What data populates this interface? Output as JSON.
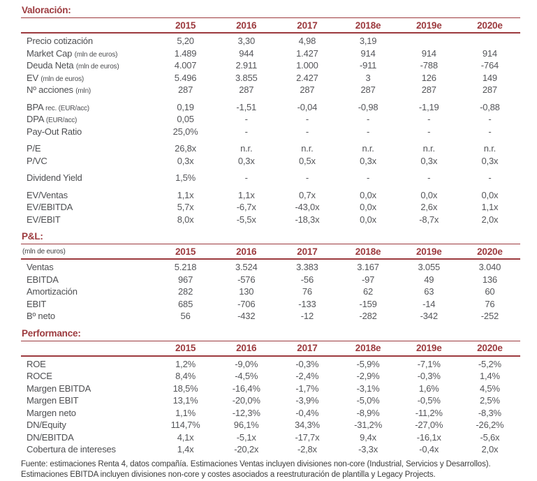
{
  "accent_color": "#9c3a3e",
  "years": [
    "2015",
    "2016",
    "2017",
    "2018e",
    "2019e",
    "2020e"
  ],
  "sections": [
    {
      "id": "valoracion",
      "title": "Valoración:",
      "header_label": "",
      "groups": [
        {
          "rows": [
            {
              "label": "Precio cotización",
              "values": [
                "5,20",
                "3,30",
                "4,98",
                "3,19",
                "",
                ""
              ]
            },
            {
              "label": "Market Cap",
              "label_small": "(mln de euros)",
              "values": [
                "1.489",
                "944",
                "1.427",
                "914",
                "914",
                "914"
              ]
            },
            {
              "label": "Deuda Neta",
              "label_small": "(mln de euros)",
              "values": [
                "4.007",
                "2.911",
                "1.000",
                "-911",
                "-788",
                "-764"
              ]
            },
            {
              "label": "EV",
              "label_small": "(mln de euros)",
              "values": [
                "5.496",
                "3.855",
                "2.427",
                "3",
                "126",
                "149"
              ]
            },
            {
              "label": "Nº acciones",
              "label_small": "(mln)",
              "values": [
                "287",
                "287",
                "287",
                "287",
                "287",
                "287"
              ]
            }
          ]
        },
        {
          "rows": [
            {
              "label": "BPA",
              "label_small": "rec. (EUR/acc)",
              "values": [
                "0,19",
                "-1,51",
                "-0,04",
                "-0,98",
                "-1,19",
                "-0,88"
              ]
            },
            {
              "label": "DPA",
              "label_small": "(EUR/acc)",
              "values": [
                "0,05",
                "-",
                "-",
                "-",
                "-",
                "-"
              ]
            },
            {
              "label": "Pay-Out Ratio",
              "values": [
                "25,0%",
                "-",
                "-",
                "-",
                "-",
                "-"
              ]
            }
          ]
        },
        {
          "rows": [
            {
              "label": "P/E",
              "values": [
                "26,8x",
                "n.r.",
                "n.r.",
                "n.r.",
                "n.r.",
                "n.r."
              ]
            },
            {
              "label": "P/VC",
              "values": [
                "0,3x",
                "0,3x",
                "0,5x",
                "0,3x",
                "0,3x",
                "0,3x"
              ]
            }
          ]
        },
        {
          "rows": [
            {
              "label": "Dividend Yield",
              "values": [
                "1,5%",
                "-",
                "-",
                "-",
                "-",
                "-"
              ]
            }
          ]
        },
        {
          "rows": [
            {
              "label": "EV/Ventas",
              "values": [
                "1,1x",
                "1,1x",
                "0,7x",
                "0,0x",
                "0,0x",
                "0,0x"
              ]
            },
            {
              "label": "EV/EBITDA",
              "values": [
                "5,7x",
                "-6,7x",
                "-43,0x",
                "0,0x",
                "2,6x",
                "1,1x"
              ]
            },
            {
              "label": "EV/EBIT",
              "values": [
                "8,0x",
                "-5,5x",
                "-18,3x",
                "0,0x",
                "-8,7x",
                "2,0x"
              ]
            }
          ]
        }
      ]
    },
    {
      "id": "pl",
      "title": "P&L:",
      "header_label": "(mln de euros)",
      "groups": [
        {
          "rows": [
            {
              "label": "Ventas",
              "values": [
                "5.218",
                "3.524",
                "3.383",
                "3.167",
                "3.055",
                "3.040"
              ]
            },
            {
              "label": "EBITDA",
              "values": [
                "967",
                "-576",
                "-56",
                "-97",
                "49",
                "136"
              ]
            },
            {
              "label": "Amortización",
              "values": [
                "282",
                "130",
                "76",
                "62",
                "63",
                "60"
              ]
            },
            {
              "label": "EBIT",
              "values": [
                "685",
                "-706",
                "-133",
                "-159",
                "-14",
                "76"
              ]
            },
            {
              "label": "Bº neto",
              "values": [
                "56",
                "-432",
                "-12",
                "-282",
                "-342",
                "-252"
              ]
            }
          ]
        }
      ]
    },
    {
      "id": "performance",
      "title": "Performance:",
      "header_label": "",
      "groups": [
        {
          "rows": [
            {
              "label": "ROE",
              "values": [
                "1,2%",
                "-9,0%",
                "-0,3%",
                "-5,9%",
                "-7,1%",
                "-5,2%"
              ]
            },
            {
              "label": "ROCE",
              "values": [
                "8,4%",
                "-4,5%",
                "-2,4%",
                "-2,9%",
                "-0,3%",
                "1,4%"
              ]
            },
            {
              "label": "Margen EBITDA",
              "values": [
                "18,5%",
                "-16,4%",
                "-1,7%",
                "-3,1%",
                "1,6%",
                "4,5%"
              ]
            },
            {
              "label": "Margen EBIT",
              "values": [
                "13,1%",
                "-20,0%",
                "-3,9%",
                "-5,0%",
                "-0,5%",
                "2,5%"
              ]
            },
            {
              "label": "Margen neto",
              "values": [
                "1,1%",
                "-12,3%",
                "-0,4%",
                "-8,9%",
                "-11,2%",
                "-8,3%"
              ]
            },
            {
              "label": "DN/Equity",
              "values": [
                "114,7%",
                "96,1%",
                "34,3%",
                "-31,2%",
                "-27,0%",
                "-26,2%"
              ]
            },
            {
              "label": "DN/EBITDA",
              "values": [
                "4,1x",
                "-5,1x",
                "-17,7x",
                "9,4x",
                "-16,1x",
                "-5,6x"
              ]
            },
            {
              "label": "Cobertura de intereses",
              "values": [
                "1,4x",
                "-20,2x",
                "-2,8x",
                "-3,3x",
                "-0,4x",
                "2,0x"
              ]
            }
          ]
        }
      ]
    }
  ],
  "footer": {
    "line1": "Fuente: estimaciones Renta 4, datos compañía. Estimaciones Ventas incluyen divisiones non-core (Industrial, Servicios y Desarrollos).",
    "line2": "Estimaciones EBITDA incluyen divisiones non-core y costes asociados a reestruturación de plantilla y Legacy Projects."
  }
}
